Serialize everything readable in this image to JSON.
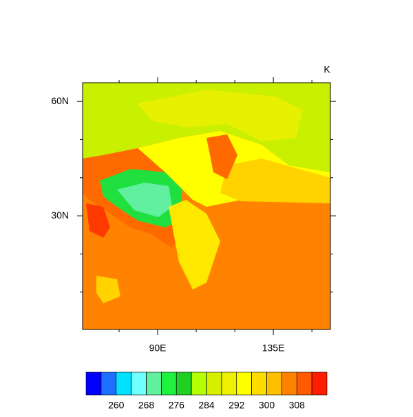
{
  "map": {
    "units": "K",
    "lon_range": [
      60.8,
      157.2
    ],
    "lat_range": [
      0.2,
      64.9
    ],
    "lon_ticks": [
      {
        "value": 90,
        "label": "90E"
      },
      {
        "value": 135,
        "label": "135E"
      }
    ],
    "lat_ticks": [
      {
        "value": 30,
        "label": "30N"
      },
      {
        "value": 60,
        "label": "60N"
      }
    ],
    "lon_minor_ticks": [
      75,
      105,
      120,
      150
    ],
    "lat_minor_ticks": [
      10,
      20,
      40,
      50
    ]
  },
  "colorbar": {
    "colors": [
      "#0000ff",
      "#1e6eff",
      "#00e0ff",
      "#70ffff",
      "#60f0a0",
      "#20f040",
      "#20d020",
      "#b4ff00",
      "#d6f000",
      "#eef000",
      "#ffff00",
      "#ffdc00",
      "#ffbe00",
      "#ff8200",
      "#ff5a00",
      "#ff1e00"
    ],
    "levels": [
      256,
      260,
      264,
      268,
      272,
      276,
      280,
      284,
      288,
      292,
      296,
      300,
      304,
      308,
      312
    ],
    "ticks": [
      260,
      268,
      276,
      284,
      292,
      300,
      308
    ]
  }
}
